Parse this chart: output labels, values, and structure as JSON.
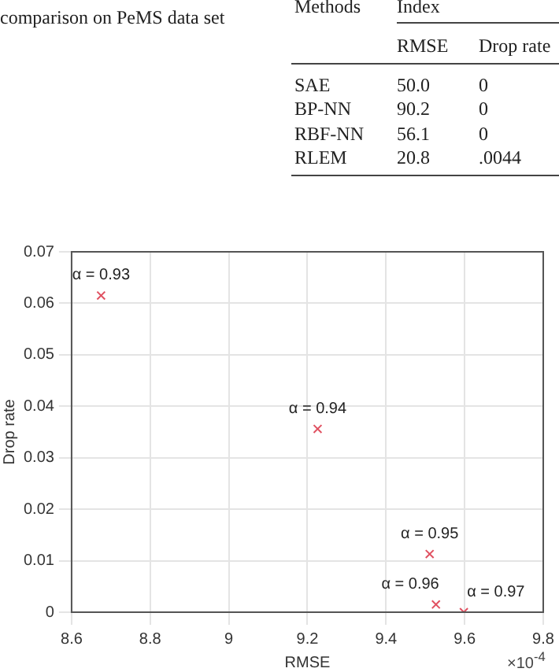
{
  "chart_data": {
    "type": "scatter",
    "xlabel": "RMSE",
    "ylabel": "Drop rate",
    "series": [
      {
        "color": "#e05060",
        "x": [
          8.675,
          9.226,
          9.511,
          9.527,
          9.598
        ],
        "values": [
          0.0615,
          0.0356,
          0.0113,
          0.0015,
          0
        ]
      }
    ],
    "xlim": [
      8.6,
      9.8
    ],
    "xticks": [
      8.6,
      8.8,
      9,
      9.2,
      9.4,
      9.6,
      9.8
    ],
    "ylim": [
      0,
      0.07
    ],
    "yticks": [
      0,
      0.01,
      0.02,
      0.03,
      0.04,
      0.05,
      0.06,
      0.07
    ],
    "grid": true,
    "legend": false,
    "marker": "cross",
    "annotations": [
      "comparison on PeMS data set",
      "Methods",
      "Index",
      "RMSE",
      "Drop rate",
      "SAE",
      "50.0",
      "0",
      "BP-NN",
      "90.2",
      "0",
      "RBF-NN",
      "56.1",
      "0",
      "RLEM",
      "20.8",
      ".0044",
      "×10$^{-4}$",
      {
        "text": "α = 0.93",
        "x": 8.675,
        "y": 0.0615
      },
      {
        "text": "α = 0.94",
        "x": 9.226,
        "y": 0.0356
      },
      {
        "text": "α = 0.95",
        "x": 9.511,
        "y": 0.0113
      },
      {
        "text": "α = 0.96",
        "x": 9.527,
        "y": 0.0015
      },
      {
        "text": "α = 0.97",
        "x": 9.598,
        "y": 0
      }
    ]
  }
}
